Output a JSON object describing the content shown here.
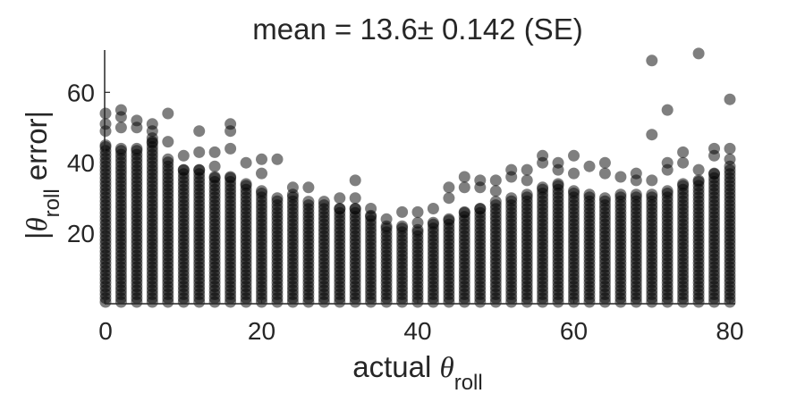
{
  "chart_data": {
    "type": "scatter",
    "title": "mean = 13.6± 0.142 (SE)",
    "xlabel": {
      "main": "actual ",
      "theta": "θ",
      "sub": "roll"
    },
    "ylabel": {
      "prefix": "|",
      "theta": "θ",
      "sub": "roll",
      "suffix": " error|"
    },
    "xlim": [
      -2,
      80
    ],
    "ylim": [
      0,
      72
    ],
    "xticks": [
      0,
      20,
      40,
      60,
      80
    ],
    "yticks": [
      20,
      40,
      60
    ],
    "grid": false,
    "marker_color": "#000000",
    "marker_alpha": 0.5,
    "series": [
      {
        "x": [
          0,
          2,
          4,
          6,
          8,
          10,
          12,
          14,
          16,
          18,
          20,
          22,
          24,
          26,
          28,
          30,
          32,
          34,
          36,
          38,
          40,
          42,
          44,
          46,
          48,
          50,
          52,
          54,
          56,
          58,
          60,
          62,
          64,
          66,
          68,
          70,
          72,
          74,
          76,
          78,
          80
        ],
        "dense_max": [
          45,
          44,
          44,
          46,
          41,
          38,
          38,
          36,
          36,
          34,
          32,
          30,
          31,
          29,
          28,
          27,
          27,
          25,
          22,
          22,
          21,
          23,
          24,
          26,
          27,
          29,
          30,
          31,
          33,
          34,
          32,
          31,
          30,
          31,
          31,
          31,
          32,
          34,
          35,
          37,
          39
        ],
        "outliers": [
          [
            0,
            54
          ],
          [
            0,
            51
          ],
          [
            0,
            49
          ],
          [
            2,
            55
          ],
          [
            2,
            53
          ],
          [
            2,
            50
          ],
          [
            4,
            52
          ],
          [
            4,
            50
          ],
          [
            6,
            51
          ],
          [
            6,
            49
          ],
          [
            6,
            47
          ],
          [
            8,
            54
          ],
          [
            8,
            46
          ],
          [
            10,
            42
          ],
          [
            12,
            49
          ],
          [
            12,
            43
          ],
          [
            14,
            43
          ],
          [
            14,
            39
          ],
          [
            16,
            51
          ],
          [
            16,
            49
          ],
          [
            16,
            44
          ],
          [
            18,
            40
          ],
          [
            20,
            41
          ],
          [
            20,
            37
          ],
          [
            22,
            41
          ],
          [
            24,
            33
          ],
          [
            26,
            33
          ],
          [
            28,
            29
          ],
          [
            30,
            30
          ],
          [
            32,
            35
          ],
          [
            32,
            30
          ],
          [
            34,
            27
          ],
          [
            36,
            24
          ],
          [
            38,
            26
          ],
          [
            40,
            26
          ],
          [
            40,
            23
          ],
          [
            42,
            27
          ],
          [
            44,
            33
          ],
          [
            44,
            30
          ],
          [
            46,
            36
          ],
          [
            46,
            33
          ],
          [
            48,
            35
          ],
          [
            48,
            33
          ],
          [
            50,
            35
          ],
          [
            50,
            32
          ],
          [
            52,
            38
          ],
          [
            52,
            36
          ],
          [
            54,
            38
          ],
          [
            54,
            35
          ],
          [
            56,
            42
          ],
          [
            56,
            40
          ],
          [
            58,
            40
          ],
          [
            58,
            38
          ],
          [
            60,
            42
          ],
          [
            60,
            37
          ],
          [
            62,
            39
          ],
          [
            64,
            40
          ],
          [
            64,
            37
          ],
          [
            66,
            36
          ],
          [
            68,
            37
          ],
          [
            68,
            35
          ],
          [
            70,
            69
          ],
          [
            70,
            48
          ],
          [
            70,
            35
          ],
          [
            72,
            55
          ],
          [
            72,
            40
          ],
          [
            72,
            38
          ],
          [
            74,
            43
          ],
          [
            74,
            40
          ],
          [
            76,
            71
          ],
          [
            76,
            38
          ],
          [
            78,
            44
          ],
          [
            78,
            42
          ],
          [
            80,
            58
          ],
          [
            80,
            44
          ],
          [
            80,
            41
          ]
        ]
      }
    ]
  }
}
